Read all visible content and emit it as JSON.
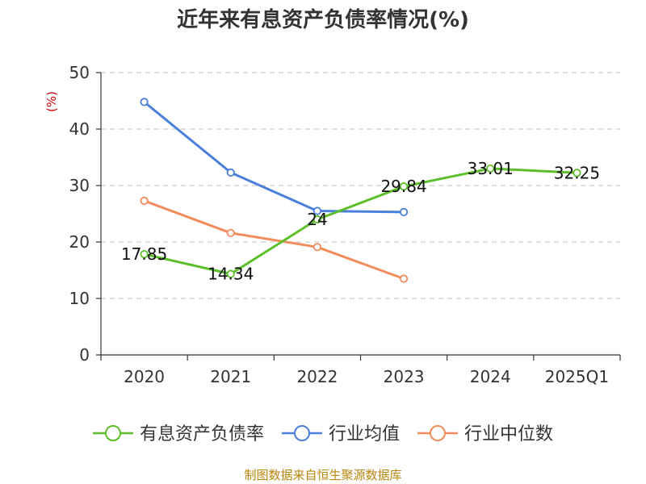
{
  "chart_data": {
    "type": "line",
    "title": "近年来有息资产负债率情况(%)",
    "ylabel": "(%)",
    "xlabel": "",
    "categories": [
      "2020",
      "2021",
      "2022",
      "2023",
      "2024",
      "2025Q1"
    ],
    "ylim": [
      0,
      50
    ],
    "yticks": [
      0,
      10,
      20,
      30,
      40,
      50
    ],
    "grid": true,
    "legend_position": "bottom",
    "series": [
      {
        "name": "有息资产负债率",
        "color": "#5cbf2a",
        "values": [
          17.85,
          14.34,
          24,
          29.84,
          33.01,
          32.25
        ],
        "labels": [
          "17.85",
          "14.34",
          "24",
          "29.84",
          "33.01",
          "32.25"
        ]
      },
      {
        "name": "行业均值",
        "color": "#4a7fdc",
        "values": [
          44.8,
          32.3,
          25.5,
          25.3,
          null,
          null
        ]
      },
      {
        "name": "行业中位数",
        "color": "#f28c5a",
        "values": [
          27.3,
          21.6,
          19.1,
          13.5,
          null,
          null
        ]
      }
    ],
    "source": "制图数据来自恒生聚源数据库"
  }
}
